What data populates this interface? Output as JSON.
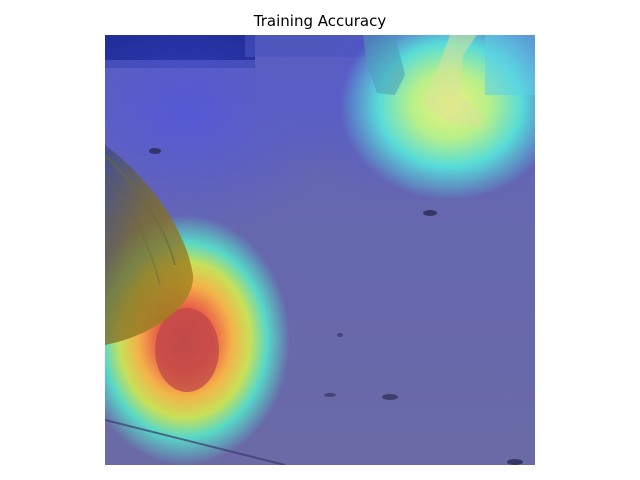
{
  "figure": {
    "title": "Training Accuracy"
  },
  "image": {
    "content": "heatmap-overlay-photo",
    "colormap": "jet",
    "colors": {
      "floor": "#5a5ca8",
      "overlay_low": "#3a3df0",
      "overlay_mid": "#40e0c0",
      "overlay_high": "#ff3b2a"
    }
  }
}
